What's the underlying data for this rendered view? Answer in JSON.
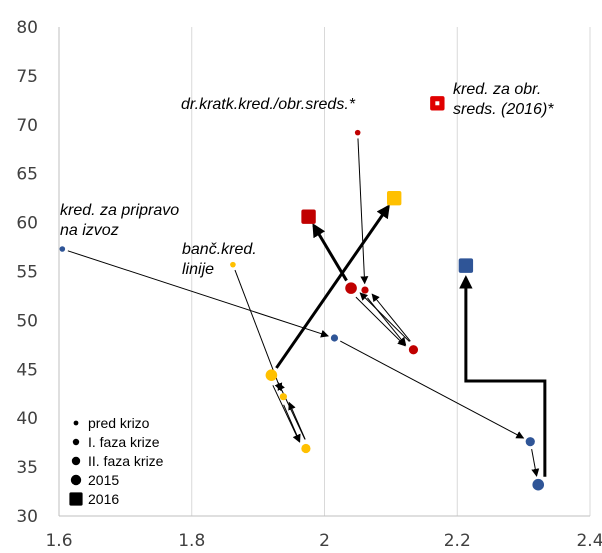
{
  "chart_data": {
    "type": "scatter",
    "xlim": [
      1.6,
      2.4
    ],
    "ylim": [
      30,
      80
    ],
    "x_ticks": [
      "1.6",
      "1.8",
      "2",
      "2.2",
      "2.4"
    ],
    "y_ticks": [
      "30",
      "35",
      "40",
      "45",
      "50",
      "55",
      "60",
      "65",
      "70",
      "75",
      "80"
    ],
    "grid": "vertical",
    "legend_position": "bottom-left",
    "legend": [
      {
        "label": "pred krizo",
        "marker": "dot-xs"
      },
      {
        "label": "I. faza krize",
        "marker": "dot-s"
      },
      {
        "label": "II. faza krize",
        "marker": "dot-m"
      },
      {
        "label": "2015",
        "marker": "dot-l"
      },
      {
        "label": "2016",
        "marker": "square"
      }
    ],
    "series": [
      {
        "name": "kred. za pripravo na izvoz",
        "color": "#2F5597",
        "points": [
          {
            "x": 1.605,
            "y": 57.3,
            "phase": "pred krizo"
          },
          {
            "x": 2.015,
            "y": 48.2,
            "phase": "I. faza krize"
          },
          {
            "x": 2.31,
            "y": 37.6,
            "phase": "II. faza krize"
          },
          {
            "x": 2.322,
            "y": 33.2,
            "phase": "2015"
          },
          {
            "x": 2.213,
            "y": 55.6,
            "phase": "2016"
          }
        ]
      },
      {
        "name": "banč.kred. linije",
        "color": "#FFC000",
        "points": [
          {
            "x": 1.862,
            "y": 55.7,
            "phase": "pred krizo"
          },
          {
            "x": 1.938,
            "y": 42.2,
            "phase": "I. faza krize"
          },
          {
            "x": 1.972,
            "y": 36.9,
            "phase": "II. faza krize"
          },
          {
            "x": 1.92,
            "y": 44.4,
            "phase": "2015"
          },
          {
            "x": 2.105,
            "y": 62.5,
            "phase": "2016"
          }
        ]
      },
      {
        "name": "dr.kratk.kred./obr.sreds.*",
        "color": "#C00000",
        "points": [
          {
            "x": 2.05,
            "y": 69.2,
            "phase": "pred krizo"
          },
          {
            "x": 2.061,
            "y": 53.1,
            "phase": "I. faza krize"
          },
          {
            "x": 2.134,
            "y": 47.0,
            "phase": "II. faza krize"
          },
          {
            "x": 2.04,
            "y": 53.3,
            "phase": "2015"
          },
          {
            "x": 1.976,
            "y": 60.6,
            "phase": "2016"
          }
        ]
      },
      {
        "name": "kred. za obr. sreds. (2016)*",
        "color": "#E00000",
        "points": [
          {
            "x": 2.17,
            "y": 72.2,
            "phase": "2016"
          }
        ]
      }
    ],
    "annotations": [
      {
        "lines": [
          "dr.kratk.kred./obr.sreds.*"
        ]
      },
      {
        "lines": [
          "kred. za obr.",
          "sreds. (2016)*"
        ]
      },
      {
        "lines": [
          "kred. za pripravo",
          "na izvoz"
        ]
      },
      {
        "lines": [
          "banč.kred.",
          "linije"
        ]
      }
    ]
  }
}
